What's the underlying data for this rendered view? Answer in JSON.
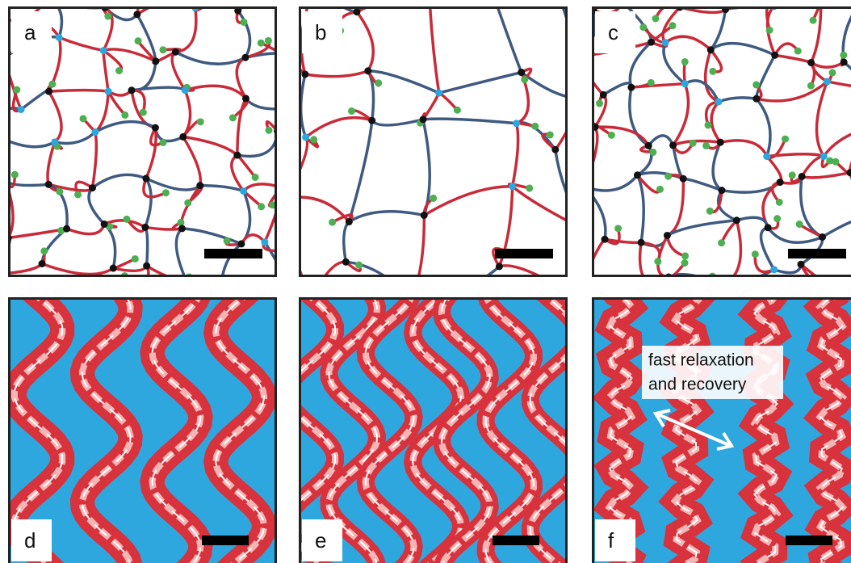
{
  "panels": [
    {
      "label": "a"
    },
    {
      "label": "b"
    },
    {
      "label": "c"
    },
    {
      "label": "d"
    },
    {
      "label": "e"
    },
    {
      "label": "f"
    }
  ],
  "annotation": [
    "fast relaxation",
    "and recovery"
  ]
}
